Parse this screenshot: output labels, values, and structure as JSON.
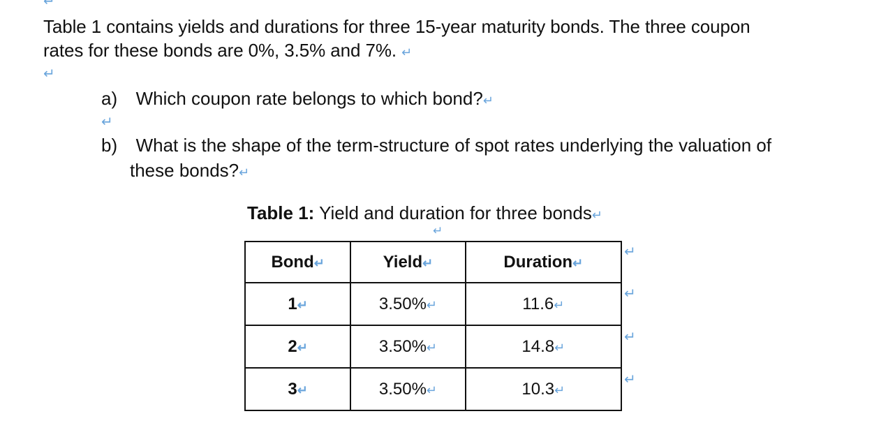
{
  "intro": {
    "line1": "Table 1 contains yields and durations for three 15-year maturity bonds. The three coupon",
    "line2": "rates for these bonds are 0%, 3.5% and 7%."
  },
  "questions": [
    {
      "marker": "a)",
      "text": "Which coupon rate belongs to which bond?"
    },
    {
      "marker": "b)",
      "text_line1": "What is the shape of the term-structure of spot rates underlying the valuation of",
      "text_line2": "these bonds?"
    }
  ],
  "caption": {
    "bold": "Table 1:",
    "text": "Yield and duration for three bonds"
  },
  "table": {
    "headers": [
      "Bond",
      "Yield",
      "Duration"
    ],
    "rows": [
      [
        "1",
        "3.50%",
        "11.6"
      ],
      [
        "2",
        "3.50%",
        "14.8"
      ],
      [
        "3",
        "3.50%",
        "10.3"
      ]
    ]
  },
  "icons": {
    "paragraph_mark": "return-arrow-icon",
    "cell_end_mark": "cell-end-icon"
  },
  "colors": {
    "formatting_marks": "#6aa5dc",
    "text": "#111111"
  }
}
